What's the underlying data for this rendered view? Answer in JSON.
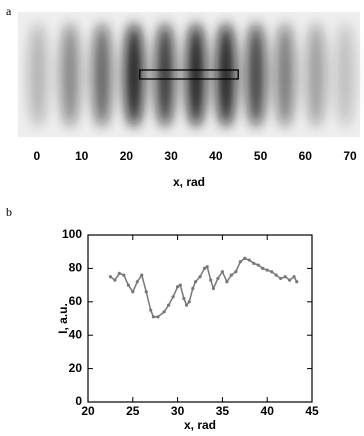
{
  "chart_data": [
    {
      "type": "image",
      "panel_label": "a",
      "xlabel": "x, rad",
      "xlim": [
        -4,
        72
      ],
      "xticks": [
        0,
        10,
        20,
        30,
        40,
        50,
        60,
        70
      ],
      "highlight": [
        23,
        45
      ]
    },
    {
      "type": "scatter",
      "panel_label": "b",
      "xlabel": "x, rad",
      "ylabel": "I, a.u.",
      "color": "#777777",
      "xlim": [
        20,
        45
      ],
      "xticks": [
        20,
        25,
        30,
        35,
        40,
        45
      ],
      "ylim": [
        0,
        100
      ],
      "yticks": [
        0,
        20,
        40,
        60,
        80,
        100
      ],
      "x": [
        22.5,
        23,
        23.5,
        24,
        24.5,
        25,
        25.5,
        26,
        26.5,
        27,
        27.3,
        27.8,
        28.5,
        29,
        29.5,
        30,
        30.3,
        30.7,
        31,
        31.3,
        31.7,
        32,
        32.5,
        33,
        33.3,
        33.7,
        34,
        34.5,
        35,
        35.5,
        36,
        36.5,
        37,
        37.5,
        38,
        38.5,
        39,
        39.5,
        40,
        40.5,
        41,
        41.5,
        42,
        42.5,
        43,
        43.3
      ],
      "values": [
        75,
        73,
        77,
        76,
        70,
        66,
        72,
        76,
        66,
        55,
        51,
        51,
        54,
        58,
        63,
        69,
        70,
        62,
        58,
        60,
        68,
        72,
        75,
        80,
        81,
        73,
        68,
        74,
        78,
        72,
        76,
        78,
        84,
        86,
        85,
        83,
        82,
        80,
        79,
        78,
        76,
        74,
        75,
        73,
        75,
        72
      ]
    }
  ]
}
